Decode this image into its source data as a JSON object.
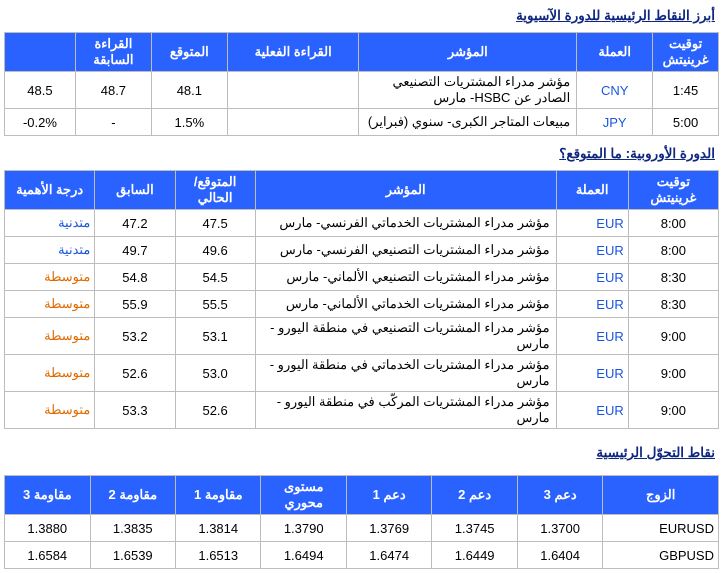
{
  "headings": {
    "asian": "أبرز النقاط الرئيسية للدورة الآسيوية",
    "european": "الدورة الأوروبية: ما المتوقع؟",
    "pivot": "نقاط التحوّل الرئيسية"
  },
  "asian": {
    "headers": {
      "time": "توقيت غرينيتش",
      "ccy": "العملة",
      "indicator": "المؤشر",
      "actual": "القراءة الفعلية",
      "forecast": "المتوقع",
      "previous": "القراءة السابقة",
      "blank": ""
    },
    "rows": [
      {
        "time": "1:45",
        "ccy": "CNY",
        "indicator": "مؤشر مدراء المشتريات التصنيعي الصادر عن HSBC- مارس",
        "actual": "",
        "forecast": "48.1",
        "previous": "48.7",
        "extra": "48.5"
      },
      {
        "time": "5:00",
        "ccy": "JPY",
        "indicator": "مبيعات المتاجر الكبرى- سنوي (فبراير)",
        "actual": "",
        "forecast": "1.5%",
        "previous": "-",
        "extra": "-0.2%"
      }
    ]
  },
  "european": {
    "headers": {
      "time": "توقيت غرينيتش",
      "ccy": "العملة",
      "indicator": "المؤشر",
      "forecast": "المتوقع/ الحالي",
      "previous": "السابق",
      "importance": "درجة الأهمية"
    },
    "rows": [
      {
        "time": "8:00",
        "ccy": "EUR",
        "indicator": "مؤشر مدراء المشتريات الخدماتي الفرنسي- مارس",
        "forecast": "47.5",
        "previous": "47.2",
        "importance": "متدنية",
        "imp_class": "imp-low"
      },
      {
        "time": "8:00",
        "ccy": "EUR",
        "indicator": "مؤشر مدراء المشتريات التصنيعي الفرنسي- مارس",
        "forecast": "49.6",
        "previous": "49.7",
        "importance": "متدنية",
        "imp_class": "imp-low"
      },
      {
        "time": "8:30",
        "ccy": "EUR",
        "indicator": "مؤشر مدراء المشتريات التصنيعي الألماني- مارس",
        "forecast": "54.5",
        "previous": "54.8",
        "importance": "متوسطة",
        "imp_class": "imp-med"
      },
      {
        "time": "8:30",
        "ccy": "EUR",
        "indicator": "مؤشر مدراء المشتريات الخدماتي الألماني- مارس",
        "forecast": "55.5",
        "previous": "55.9",
        "importance": "متوسطة",
        "imp_class": "imp-med"
      },
      {
        "time": "9:00",
        "ccy": "EUR",
        "indicator": "مؤشر مدراء المشتريات التصنيعي في منطقة اليورو - مارس",
        "forecast": "53.1",
        "previous": "53.2",
        "importance": "متوسطة",
        "imp_class": "imp-med"
      },
      {
        "time": "9:00",
        "ccy": "EUR",
        "indicator": "مؤشر مدراء المشتريات الخدماتي في منطقة اليورو - مارس",
        "forecast": "53.0",
        "previous": "52.6",
        "importance": "متوسطة",
        "imp_class": "imp-med"
      },
      {
        "time": "9:00",
        "ccy": "EUR",
        "indicator": "مؤشر مدراء المشتريات المركّب في منطقة اليورو - مارس",
        "forecast": "52.6",
        "previous": "53.3",
        "importance": "متوسطة",
        "imp_class": "imp-med"
      }
    ]
  },
  "pivot": {
    "headers": {
      "pair": "الزوج",
      "s3": "دعم 3",
      "s2": "دعم 2",
      "s1": "دعم 1",
      "pivot": "مستوى محوري",
      "r1": "مقاومة 1",
      "r2": "مقاومة 2",
      "r3": "مقاومة 3"
    },
    "rows": [
      {
        "pair": "EURUSD",
        "s3": "1.3700",
        "s2": "1.3745",
        "s1": "1.3769",
        "pivot": "1.3790",
        "r1": "1.3814",
        "r2": "1.3835",
        "r3": "1.3880"
      },
      {
        "pair": "GBPUSD",
        "s3": "1.6404",
        "s2": "1.6449",
        "s1": "1.6474",
        "pivot": "1.6494",
        "r1": "1.6513",
        "r2": "1.6539",
        "r3": "1.6584"
      }
    ]
  }
}
